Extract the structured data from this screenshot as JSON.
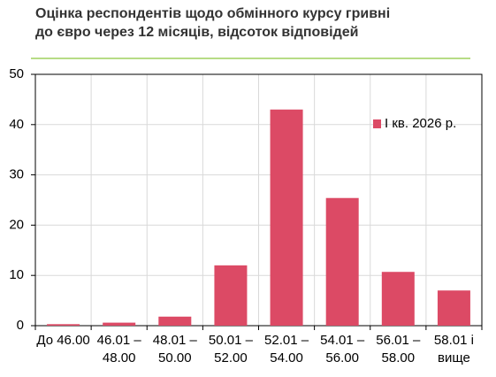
{
  "chart_data": {
    "type": "bar",
    "title": [
      "Оцінка респондентів щодо обмінного курсу гривні",
      "до євро через 12 місяців, відсоток відповідей"
    ],
    "categories": [
      [
        "До 46.00"
      ],
      [
        "46.01 –",
        "48.00"
      ],
      [
        "48.01 –",
        "50.00"
      ],
      [
        "50.01 –",
        "52.00"
      ],
      [
        "52.01 –",
        "54.00"
      ],
      [
        "54.01 –",
        "56.00"
      ],
      [
        "56.01 –",
        "58.00"
      ],
      [
        "58.01 і",
        "вище"
      ]
    ],
    "series": [
      {
        "name": "I кв. 2026 р.",
        "color": "#dc4a65",
        "values": [
          0.3,
          0.6,
          1.8,
          12.0,
          43.0,
          25.4,
          10.7,
          7.0
        ]
      }
    ],
    "ylim": [
      0,
      50
    ],
    "yticks": [
      0,
      10,
      20,
      30,
      40,
      50
    ],
    "grid": true,
    "legend": "upper-right"
  }
}
